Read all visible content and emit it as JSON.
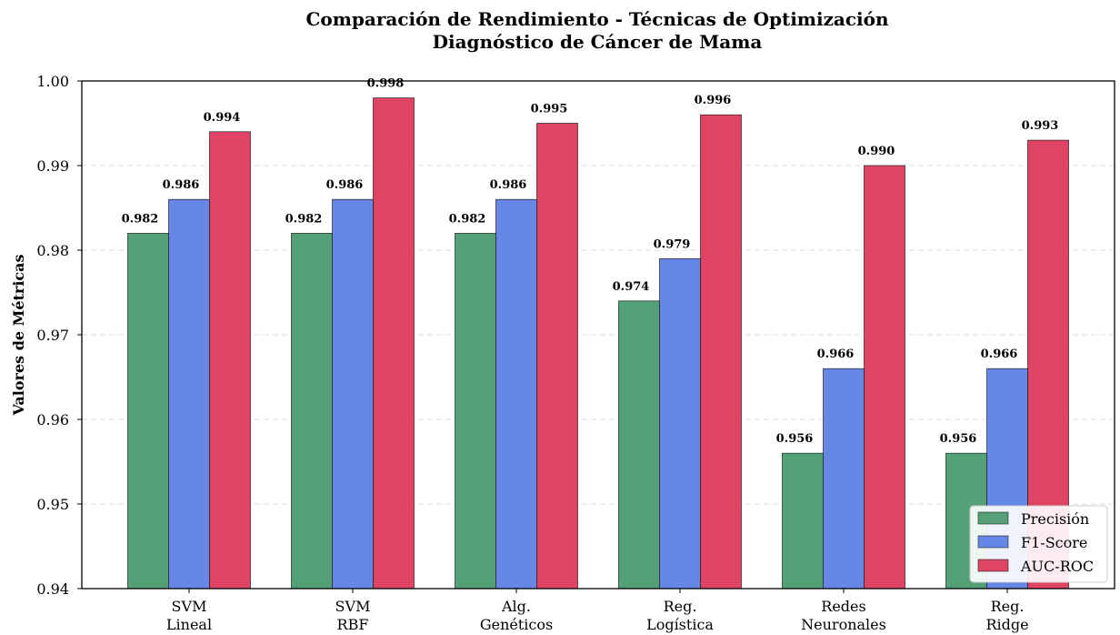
{
  "chart_data": {
    "type": "bar",
    "title": [
      "Comparación de Rendimiento - Técnicas de Optimización",
      "Diagnóstico de Cáncer de Mama"
    ],
    "xlabel": "",
    "ylabel": "Valores de Métricas",
    "ylim": [
      0.94,
      1.0
    ],
    "yticks": [
      "0.94",
      "0.95",
      "0.96",
      "0.97",
      "0.98",
      "0.99",
      "1.00"
    ],
    "grid": "y-dashed",
    "legend_position": "lower-right",
    "categories": [
      [
        "SVM",
        "Lineal"
      ],
      [
        "SVM",
        "RBF"
      ],
      [
        "Alg.",
        "Genéticos"
      ],
      [
        "Reg.",
        "Logística"
      ],
      [
        "Redes",
        "Neuronales"
      ],
      [
        "Reg.",
        "Ridge"
      ]
    ],
    "series": [
      {
        "name": "Precisión",
        "color": "#55a177",
        "values": [
          0.982,
          0.982,
          0.982,
          0.974,
          0.956,
          0.956
        ],
        "labels": [
          "0.982",
          "0.982",
          "0.982",
          "0.974",
          "0.956",
          "0.956"
        ]
      },
      {
        "name": "F1-Score",
        "color": "#6687e6",
        "values": [
          0.986,
          0.986,
          0.986,
          0.979,
          0.966,
          0.966
        ],
        "labels": [
          "0.986",
          "0.986",
          "0.986",
          "0.979",
          "0.966",
          "0.966"
        ]
      },
      {
        "name": "AUC-ROC",
        "color": "#e04464",
        "values": [
          0.994,
          0.998,
          0.995,
          0.996,
          0.99,
          0.993
        ],
        "labels": [
          "0.994",
          "0.998",
          "0.995",
          "0.996",
          "0.990",
          "0.993"
        ]
      }
    ]
  }
}
